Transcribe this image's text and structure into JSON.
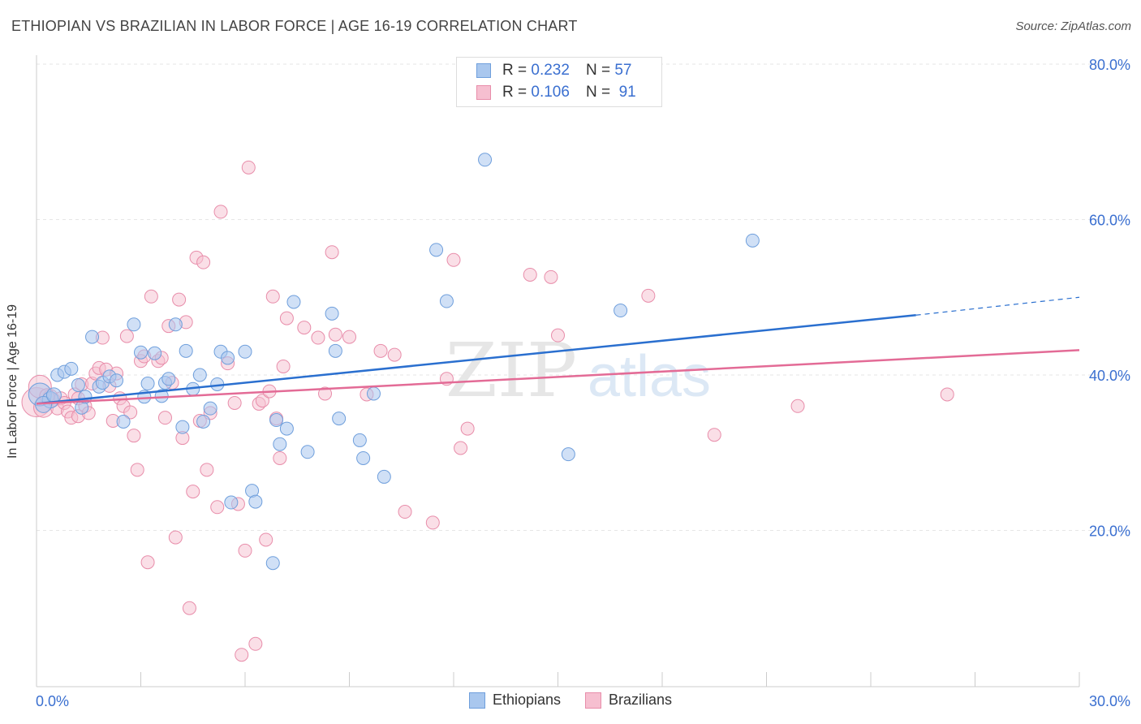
{
  "header": {
    "title": "ETHIOPIAN VS BRAZILIAN IN LABOR FORCE | AGE 16-19 CORRELATION CHART",
    "source": "Source: ZipAtlas.com"
  },
  "legend": {
    "rows": [
      {
        "r_label": "R = ",
        "r_value": "0.232",
        "n_label": "N = ",
        "n_value": "57"
      },
      {
        "r_label": "R = ",
        "r_value": "0.106",
        "n_label": "N = ",
        "n_value": "91"
      }
    ],
    "bottom": [
      "Ethiopians",
      "Brazilians"
    ]
  },
  "watermark": {
    "zip": "ZIP",
    "atlas": "atlas"
  },
  "colors": {
    "ethiopians_fill": "#a9c7ee",
    "ethiopians_stroke": "#6f9fdc",
    "ethiopians_line": "#2a6fcf",
    "brazilians_fill": "#f6bfd0",
    "brazilians_stroke": "#e88daa",
    "brazilians_line": "#e36b96",
    "axis_text": "#3a6fd0",
    "grid": "#e6e6e6"
  },
  "chart_data": {
    "type": "scatter",
    "title": "ETHIOPIAN VS BRAZILIAN IN LABOR FORCE | AGE 16-19 CORRELATION CHART",
    "xlabel": "",
    "ylabel": "In Labor Force | Age 16-19",
    "xlim": [
      0,
      30
    ],
    "ylim": [
      0,
      80
    ],
    "x_tick_labels": [
      "0.0%",
      "30.0%"
    ],
    "y_ticks": [
      20,
      40,
      60,
      80
    ],
    "y_tick_labels": [
      "20.0%",
      "40.0%",
      "60.0%",
      "80.0%"
    ],
    "grid": true,
    "legend_position": "top-center",
    "series": [
      {
        "name": "Ethiopians",
        "r": 0.232,
        "n": 57,
        "trend": {
          "x": [
            0,
            25.3
          ],
          "y": [
            36.3,
            47.7
          ],
          "dashed_to": [
            30,
            50.0
          ]
        },
        "points": [
          [
            0.1,
            37.5,
            14
          ],
          [
            0.4,
            36.8,
            10
          ],
          [
            0.6,
            40.0,
            8
          ],
          [
            0.8,
            40.4,
            8
          ],
          [
            1.0,
            40.8,
            8
          ],
          [
            1.2,
            38.7,
            8
          ],
          [
            1.3,
            35.8,
            8
          ],
          [
            1.4,
            37.2,
            8
          ],
          [
            1.6,
            44.9,
            8
          ],
          [
            1.8,
            38.5,
            8
          ],
          [
            1.9,
            39.0,
            8
          ],
          [
            2.1,
            39.8,
            8
          ],
          [
            2.3,
            39.3,
            8
          ],
          [
            2.5,
            34.0,
            8
          ],
          [
            2.8,
            46.5,
            8
          ],
          [
            3.0,
            42.9,
            8
          ],
          [
            3.1,
            37.2,
            8
          ],
          [
            3.2,
            38.9,
            8
          ],
          [
            3.4,
            42.8,
            8
          ],
          [
            3.6,
            37.3,
            8
          ],
          [
            3.7,
            39.0,
            8
          ],
          [
            3.8,
            39.5,
            8
          ],
          [
            4.0,
            46.5,
            8
          ],
          [
            4.2,
            33.3,
            8
          ],
          [
            4.3,
            43.1,
            8
          ],
          [
            4.5,
            38.2,
            8
          ],
          [
            4.7,
            40.0,
            8
          ],
          [
            4.8,
            34.0,
            8
          ],
          [
            5.0,
            35.7,
            8
          ],
          [
            5.2,
            38.8,
            8
          ],
          [
            5.3,
            43.0,
            8
          ],
          [
            5.5,
            42.2,
            8
          ],
          [
            5.6,
            23.6,
            8
          ],
          [
            6.0,
            43.0,
            8
          ],
          [
            6.2,
            25.1,
            8
          ],
          [
            6.3,
            23.7,
            8
          ],
          [
            6.8,
            15.8,
            8
          ],
          [
            6.9,
            34.2,
            8
          ],
          [
            7.0,
            31.1,
            8
          ],
          [
            7.2,
            33.1,
            8
          ],
          [
            7.4,
            49.4,
            8
          ],
          [
            7.8,
            30.1,
            8
          ],
          [
            8.5,
            47.9,
            8
          ],
          [
            8.6,
            43.1,
            8
          ],
          [
            8.7,
            34.4,
            8
          ],
          [
            9.3,
            31.6,
            8
          ],
          [
            9.4,
            29.3,
            8
          ],
          [
            9.7,
            37.6,
            8
          ],
          [
            10.0,
            26.9,
            8
          ],
          [
            11.5,
            56.1,
            8
          ],
          [
            11.8,
            49.5,
            8
          ],
          [
            12.9,
            67.7,
            8
          ],
          [
            15.3,
            29.8,
            8
          ],
          [
            16.8,
            48.3,
            8
          ],
          [
            20.6,
            57.3,
            8
          ],
          [
            0.2,
            36.2,
            10
          ],
          [
            0.5,
            37.4,
            9
          ]
        ]
      },
      {
        "name": "Brazilians",
        "r": 0.106,
        "n": 91,
        "trend": {
          "x": [
            0,
            30
          ],
          "y": [
            36.3,
            43.2
          ]
        },
        "points": [
          [
            0.0,
            36.5,
            18
          ],
          [
            0.1,
            38.5,
            14
          ],
          [
            0.2,
            35.8,
            12
          ],
          [
            0.4,
            37.2,
            9
          ],
          [
            0.5,
            36.8,
            8
          ],
          [
            0.6,
            35.7,
            8
          ],
          [
            0.7,
            37.0,
            8
          ],
          [
            0.8,
            36.4,
            8
          ],
          [
            0.9,
            35.3,
            8
          ],
          [
            1.0,
            34.5,
            8
          ],
          [
            1.1,
            37.5,
            8
          ],
          [
            1.2,
            34.7,
            8
          ],
          [
            1.3,
            38.8,
            8
          ],
          [
            1.4,
            36.0,
            8
          ],
          [
            1.5,
            35.1,
            8
          ],
          [
            1.6,
            38.9,
            8
          ],
          [
            1.7,
            40.2,
            8
          ],
          [
            1.8,
            40.9,
            8
          ],
          [
            1.9,
            44.8,
            8
          ],
          [
            2.0,
            40.7,
            8
          ],
          [
            2.1,
            38.6,
            8
          ],
          [
            2.2,
            34.1,
            8
          ],
          [
            2.3,
            40.2,
            8
          ],
          [
            2.4,
            37.0,
            8
          ],
          [
            2.5,
            36.0,
            8
          ],
          [
            2.6,
            45.0,
            8
          ],
          [
            2.7,
            35.2,
            8
          ],
          [
            2.8,
            32.2,
            8
          ],
          [
            2.9,
            27.8,
            8
          ],
          [
            3.0,
            41.8,
            8
          ],
          [
            3.1,
            42.4,
            8
          ],
          [
            3.2,
            15.9,
            8
          ],
          [
            3.3,
            50.1,
            8
          ],
          [
            3.5,
            41.8,
            8
          ],
          [
            3.6,
            42.2,
            8
          ],
          [
            3.7,
            34.5,
            8
          ],
          [
            3.8,
            46.3,
            8
          ],
          [
            3.9,
            39.0,
            8
          ],
          [
            4.0,
            19.1,
            8
          ],
          [
            4.1,
            49.7,
            8
          ],
          [
            4.2,
            31.9,
            8
          ],
          [
            4.3,
            46.8,
            8
          ],
          [
            4.4,
            10.0,
            8
          ],
          [
            4.5,
            25.0,
            8
          ],
          [
            4.6,
            55.1,
            8
          ],
          [
            4.7,
            34.1,
            8
          ],
          [
            4.8,
            54.5,
            8
          ],
          [
            4.9,
            27.8,
            8
          ],
          [
            5.0,
            35.1,
            8
          ],
          [
            5.2,
            23.0,
            8
          ],
          [
            5.3,
            61.0,
            8
          ],
          [
            5.5,
            41.5,
            8
          ],
          [
            5.7,
            36.4,
            8
          ],
          [
            5.8,
            23.4,
            8
          ],
          [
            5.9,
            4.0,
            8
          ],
          [
            6.0,
            17.4,
            8
          ],
          [
            6.1,
            66.7,
            8
          ],
          [
            6.3,
            5.4,
            8
          ],
          [
            6.4,
            36.3,
            8
          ],
          [
            6.5,
            36.7,
            8
          ],
          [
            6.6,
            18.8,
            8
          ],
          [
            6.7,
            37.9,
            8
          ],
          [
            6.8,
            50.1,
            8
          ],
          [
            6.9,
            34.4,
            8
          ],
          [
            7.0,
            29.3,
            8
          ],
          [
            7.1,
            41.1,
            8
          ],
          [
            7.2,
            47.3,
            8
          ],
          [
            7.7,
            46.1,
            8
          ],
          [
            8.1,
            44.8,
            8
          ],
          [
            8.3,
            37.6,
            8
          ],
          [
            8.5,
            55.8,
            8
          ],
          [
            8.6,
            45.2,
            8
          ],
          [
            9.0,
            44.9,
            8
          ],
          [
            9.5,
            37.5,
            8
          ],
          [
            9.9,
            43.1,
            8
          ],
          [
            10.3,
            42.6,
            8
          ],
          [
            10.6,
            22.4,
            8
          ],
          [
            11.4,
            21.0,
            8
          ],
          [
            11.8,
            39.5,
            8
          ],
          [
            12.0,
            54.8,
            8
          ],
          [
            12.2,
            30.6,
            8
          ],
          [
            12.4,
            33.1,
            8
          ],
          [
            14.2,
            52.9,
            8
          ],
          [
            14.8,
            52.6,
            8
          ],
          [
            15.0,
            45.1,
            8
          ],
          [
            17.6,
            50.2,
            8
          ],
          [
            19.5,
            32.3,
            8
          ],
          [
            21.9,
            36.0,
            8
          ],
          [
            26.2,
            37.5,
            8
          ],
          [
            0.3,
            37.3,
            9
          ],
          [
            1.2,
            37.0,
            8
          ]
        ]
      }
    ]
  }
}
